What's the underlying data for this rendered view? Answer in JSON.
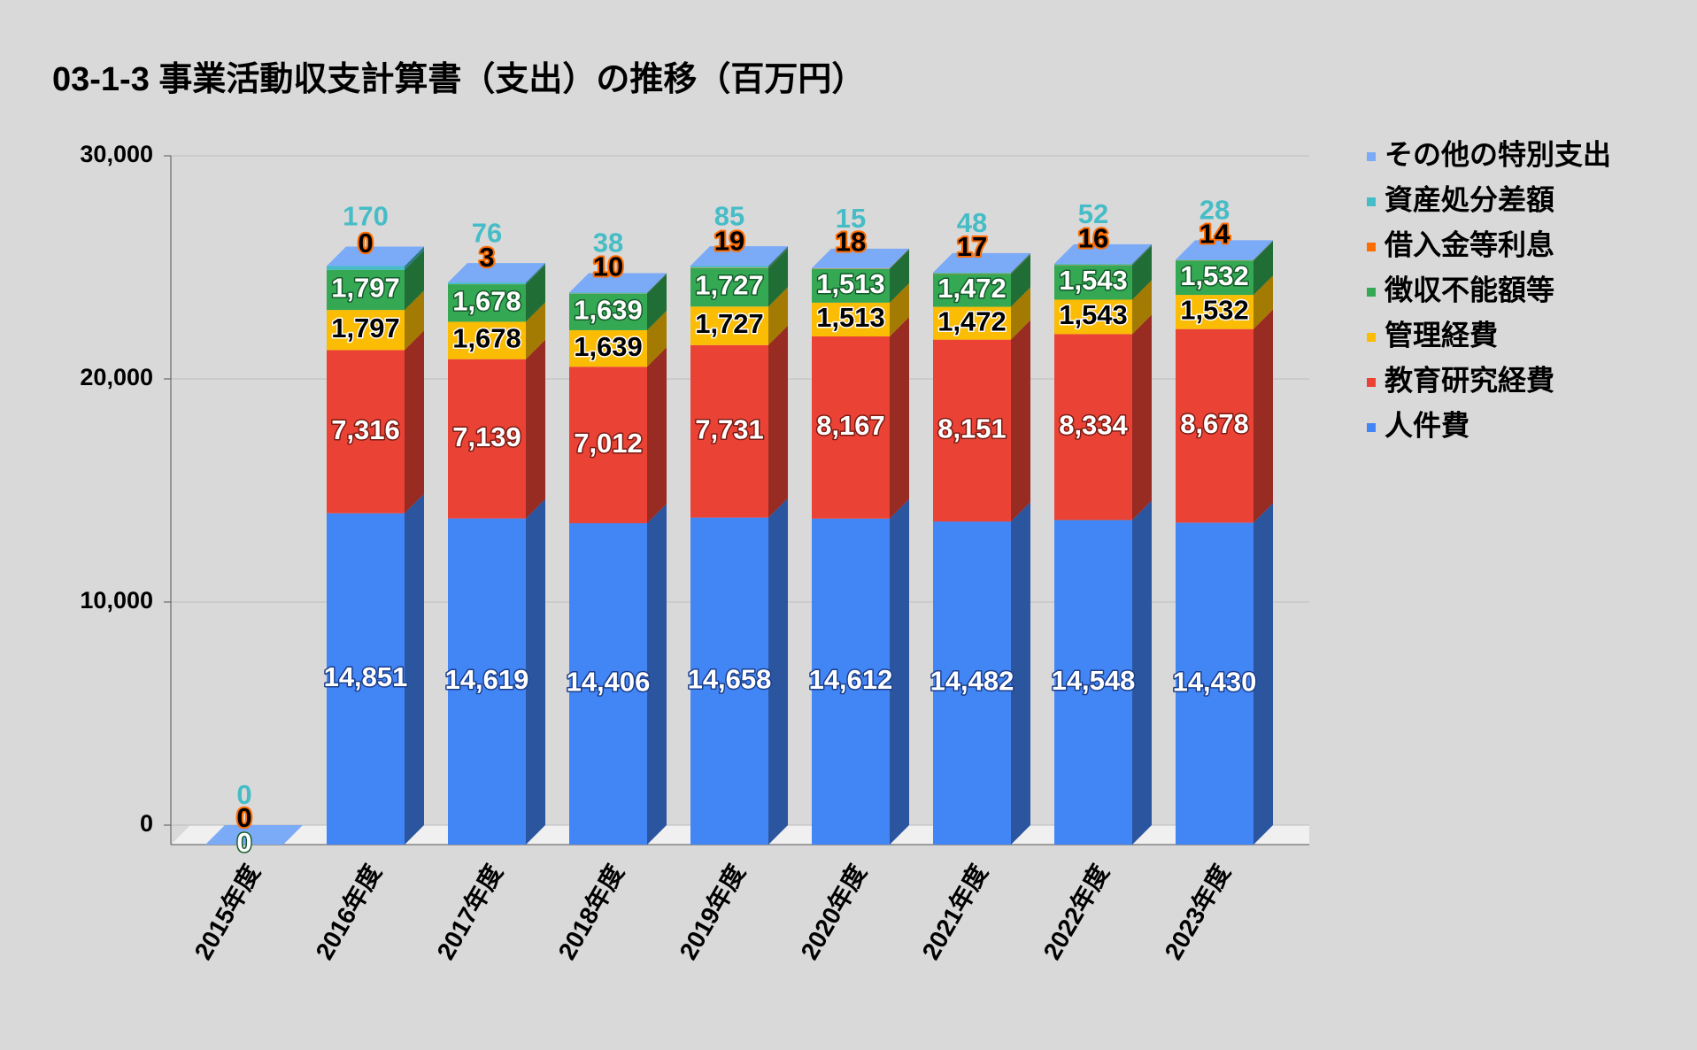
{
  "chart_data": {
    "type": "bar3d_stacked",
    "title": "03-1-3 事業活動収支計算書（支出）の推移（百万円）",
    "categories": [
      "2015年度",
      "2016年度",
      "2017年度",
      "2018年度",
      "2019年度",
      "2020年度",
      "2021年度",
      "2022年度",
      "2023年度"
    ],
    "ylim": [
      0,
      30000
    ],
    "yticks": [
      {
        "value": 0,
        "label": "0"
      },
      {
        "value": 10000,
        "label": "10,000"
      },
      {
        "value": 20000,
        "label": "20,000"
      },
      {
        "value": 30000,
        "label": "30,000"
      }
    ],
    "grid": true,
    "legend": "right",
    "series": [
      {
        "name": "人件費",
        "color": "#4285f4",
        "values": [
          null,
          14851,
          14619,
          14406,
          14658,
          14612,
          14482,
          14548,
          14430
        ],
        "value_labels": [
          null,
          "14,851",
          "14,619",
          "14,406",
          "14,658",
          "14,612",
          "14,482",
          "14,548",
          "14,430"
        ]
      },
      {
        "name": "教育研究経費",
        "color": "#ea4335",
        "values": [
          null,
          7316,
          7139,
          7012,
          7731,
          8167,
          8151,
          8334,
          8678
        ],
        "value_labels": [
          null,
          "7,316",
          "7,139",
          "7,012",
          "7,731",
          "8,167",
          "8,151",
          "8,334",
          "8,678"
        ]
      },
      {
        "name": "管理経費",
        "color": "#fbbc04",
        "values": [
          0,
          1797,
          1678,
          1639,
          1727,
          1513,
          1472,
          1543,
          1532
        ],
        "value_labels": [
          "0",
          "1,797",
          "1,678",
          "1,639",
          "1,727",
          "1,513",
          "1,472",
          "1,543",
          "1,532"
        ]
      },
      {
        "name": "徴収不能額等",
        "color": "#34a853",
        "values": [
          0,
          1797,
          1678,
          1639,
          1727,
          1513,
          1472,
          1543,
          1532
        ],
        "value_labels": [
          "0",
          "1,797",
          "1,678",
          "1,639",
          "1,727",
          "1,513",
          "1,472",
          "1,543",
          "1,532"
        ]
      },
      {
        "name": "借入金等利息",
        "color": "#ff6d01",
        "values": [
          0,
          0,
          3,
          10,
          19,
          18,
          17,
          16,
          14
        ]
      },
      {
        "name": "資産処分差額",
        "color": "#46bdc6",
        "values": [
          0,
          170,
          76,
          38,
          85,
          15,
          48,
          52,
          28
        ]
      },
      {
        "name": "その他の特別支出",
        "color": "#7baaf7",
        "values": [
          0,
          0,
          0,
          0,
          0,
          0,
          0,
          0,
          0
        ],
        "data_labels": false
      }
    ]
  }
}
